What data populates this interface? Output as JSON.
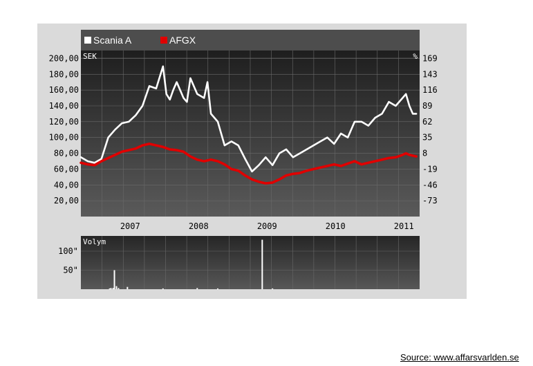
{
  "legend": {
    "items": [
      {
        "label": "Scania A",
        "color": "#ffffff"
      },
      {
        "label": "AFGX",
        "color": "#e00000"
      }
    ]
  },
  "source_text": "Source: www.affarsvarlden.se",
  "chart_data": [
    {
      "type": "line",
      "left_axis_unit": "SEK",
      "right_axis_unit": "%",
      "ylim": [
        0,
        210
      ],
      "left_ticks": [
        "200,00",
        "180,00",
        "160,00",
        "140,00",
        "120,00",
        "100,00",
        "80,00",
        "60,00",
        "40,00",
        "20,00"
      ],
      "left_tick_values": [
        200,
        180,
        160,
        140,
        120,
        100,
        80,
        60,
        40,
        20
      ],
      "right_ticks": [
        "169",
        "143",
        "116",
        "89",
        "62",
        "35",
        "8",
        "-19",
        "-46",
        "-73"
      ],
      "x_ticks": [
        "2007",
        "2008",
        "2009",
        "2010",
        "2011"
      ],
      "x_tick_positions": [
        2007.0,
        2008.0,
        2009.0,
        2010.0,
        2011.0
      ],
      "xlim": [
        2006.3,
        2011.25
      ],
      "grid": true,
      "legend_placement": "top-left",
      "series": [
        {
          "name": "Scania A",
          "color": "#ffffff",
          "x": [
            2006.3,
            2006.4,
            2006.5,
            2006.6,
            2006.7,
            2006.8,
            2006.9,
            2007.0,
            2007.1,
            2007.2,
            2007.3,
            2007.4,
            2007.5,
            2007.55,
            2007.6,
            2007.65,
            2007.7,
            2007.8,
            2007.85,
            2007.9,
            2008.0,
            2008.1,
            2008.15,
            2008.2,
            2008.3,
            2008.4,
            2008.5,
            2008.6,
            2008.7,
            2008.8,
            2008.9,
            2009.0,
            2009.1,
            2009.2,
            2009.3,
            2009.4,
            2009.5,
            2009.6,
            2009.7,
            2009.8,
            2009.9,
            2010.0,
            2010.1,
            2010.2,
            2010.3,
            2010.4,
            2010.5,
            2010.6,
            2010.7,
            2010.8,
            2010.9,
            2011.0,
            2011.05,
            2011.1,
            2011.15,
            2011.2
          ],
          "values": [
            75,
            70,
            68,
            73,
            100,
            110,
            118,
            120,
            128,
            140,
            165,
            162,
            190,
            155,
            148,
            160,
            170,
            150,
            145,
            175,
            155,
            150,
            170,
            130,
            120,
            90,
            95,
            90,
            73,
            57,
            65,
            75,
            65,
            80,
            85,
            75,
            80,
            85,
            90,
            95,
            100,
            92,
            105,
            100,
            120,
            120,
            115,
            125,
            130,
            145,
            140,
            150,
            155,
            140,
            130,
            130
          ]
        },
        {
          "name": "AFGX",
          "color": "#e00000",
          "x": [
            2006.3,
            2006.4,
            2006.5,
            2006.6,
            2006.7,
            2006.8,
            2006.9,
            2007.0,
            2007.1,
            2007.2,
            2007.3,
            2007.4,
            2007.5,
            2007.6,
            2007.7,
            2007.8,
            2007.9,
            2008.0,
            2008.1,
            2008.2,
            2008.3,
            2008.4,
            2008.5,
            2008.6,
            2008.7,
            2008.8,
            2008.9,
            2009.0,
            2009.1,
            2009.2,
            2009.3,
            2009.4,
            2009.5,
            2009.6,
            2009.7,
            2009.8,
            2009.9,
            2010.0,
            2010.1,
            2010.2,
            2010.3,
            2010.4,
            2010.5,
            2010.6,
            2010.7,
            2010.8,
            2010.9,
            2011.0,
            2011.05,
            2011.1,
            2011.2
          ],
          "values": [
            68,
            66,
            65,
            70,
            74,
            78,
            82,
            84,
            86,
            90,
            92,
            90,
            88,
            85,
            84,
            82,
            76,
            72,
            70,
            72,
            70,
            66,
            60,
            58,
            52,
            47,
            44,
            42,
            43,
            47,
            52,
            54,
            55,
            58,
            60,
            62,
            64,
            66,
            64,
            67,
            70,
            66,
            68,
            70,
            72,
            74,
            75,
            78,
            80,
            78,
            76
          ]
        }
      ]
    },
    {
      "type": "bar",
      "title": "Volym",
      "ylim": [
        0,
        140
      ],
      "y_ticks": [
        "100\"",
        "50\""
      ],
      "y_tick_values": [
        100,
        50
      ],
      "xlim": [
        2006.3,
        2011.25
      ],
      "grid": true,
      "series": [
        {
          "name": "Volym",
          "x": [
            2006.72,
            2006.74,
            2006.77,
            2006.79,
            2006.82,
            2006.85,
            2006.98,
            2007.5,
            2008.0,
            2008.3,
            2008.95,
            2009.1
          ],
          "values": [
            2,
            3,
            3,
            50,
            8,
            3,
            6,
            2,
            3,
            2,
            130,
            2
          ]
        }
      ]
    }
  ]
}
